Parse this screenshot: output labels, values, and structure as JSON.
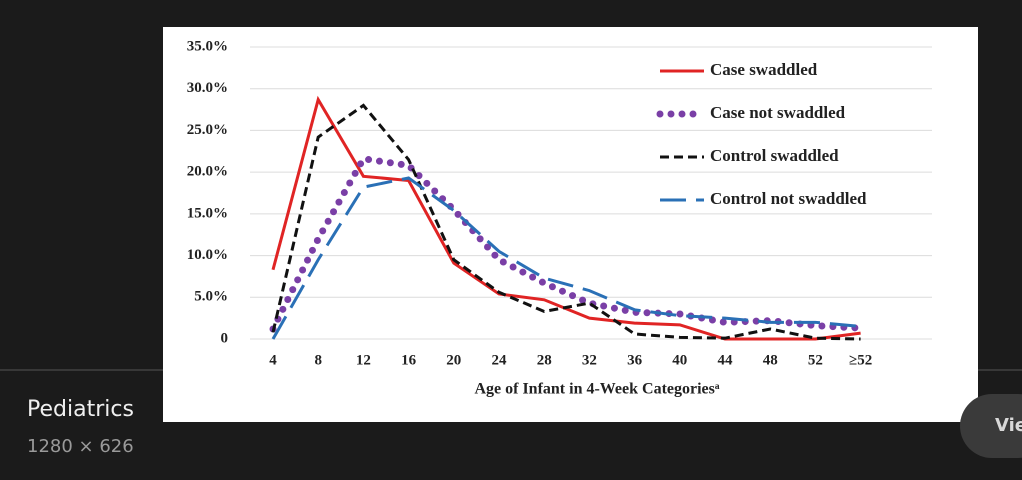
{
  "chart_data": {
    "type": "line",
    "xlabel": "Age of Infant in 4-Week Categoriesᵃ",
    "categories": [
      "4",
      "8",
      "12",
      "16",
      "20",
      "24",
      "28",
      "32",
      "36",
      "40",
      "44",
      "48",
      "52",
      "≥52"
    ],
    "ylim": [
      0,
      35
    ],
    "yticks": [
      0,
      {
        "value": 5,
        "label": "5.0%"
      },
      {
        "value": 10,
        "label": "10.0%"
      },
      {
        "value": 15,
        "label": "15.0%"
      },
      {
        "value": 20,
        "label": "20.0%"
      },
      {
        "value": 25,
        "label": "25.0%"
      },
      {
        "value": 30,
        "label": "30.0%"
      },
      {
        "value": 35,
        "label": "35.0%"
      }
    ],
    "grid": true,
    "legend": "upper right",
    "series": [
      {
        "name": "Case swaddled",
        "color": "#e02424",
        "style": "solid",
        "values": [
          8.3,
          28.7,
          19.5,
          19.0,
          9.1,
          5.4,
          4.7,
          2.5,
          1.9,
          1.7,
          0,
          0,
          0,
          0.7
        ]
      },
      {
        "name": "Case not swaddled",
        "color": "#7a3fa6",
        "style": "dotted",
        "values": [
          1.2,
          12.0,
          21.6,
          20.8,
          15.5,
          9.5,
          6.7,
          4.3,
          3.2,
          3.0,
          2.0,
          2.2,
          1.6,
          1.3
        ]
      },
      {
        "name": "Control swaddled",
        "color": "#111111",
        "style": "dashed",
        "values": [
          0.8,
          24.2,
          28.0,
          21.5,
          9.5,
          5.6,
          3.3,
          4.3,
          0.6,
          0.2,
          0.1,
          1.2,
          0.1,
          0
        ]
      },
      {
        "name": "Control not swaddled",
        "color": "#2a70b6",
        "style": "longdash",
        "values": [
          0,
          9.5,
          18.2,
          19.3,
          15.4,
          10.5,
          7.3,
          5.8,
          3.5,
          2.8,
          2.5,
          2.0,
          2.0,
          1.5
        ]
      }
    ]
  },
  "caption": {
    "source": "Pediatrics",
    "size": "1280 × 626"
  },
  "button": "Vie"
}
